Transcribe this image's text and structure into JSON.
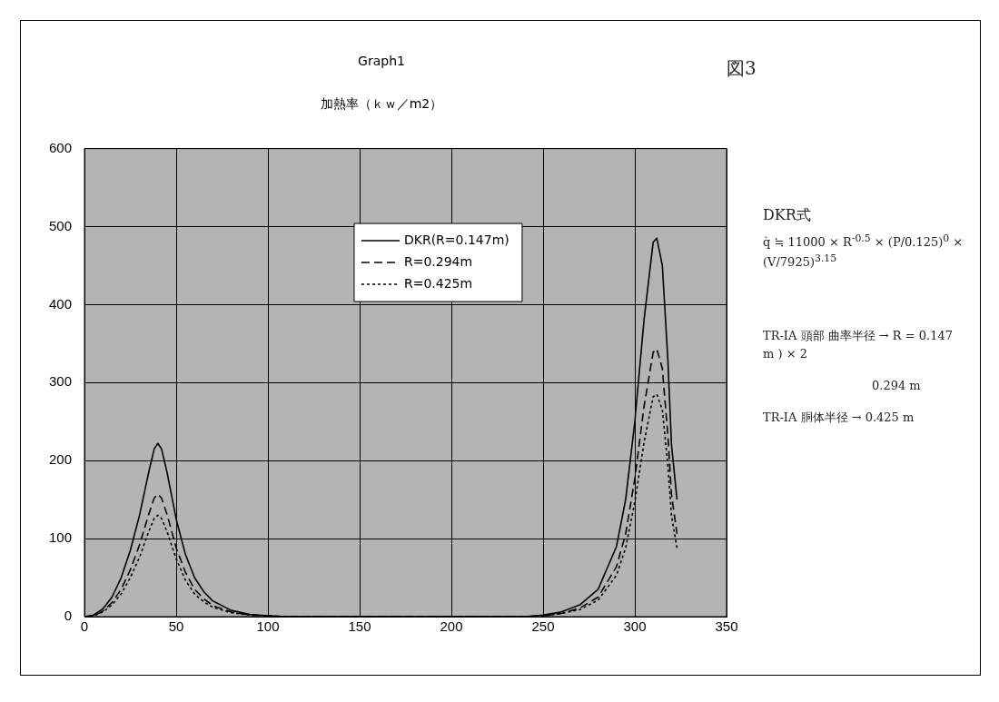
{
  "chart_data": {
    "type": "line",
    "title": "Graph1",
    "subtitle": "加熱率（ｋｗ／m2）",
    "xlim": [
      0,
      350
    ],
    "xticks": [
      0,
      50,
      100,
      150,
      200,
      250,
      300,
      350
    ],
    "ylim": [
      0,
      600
    ],
    "yticks": [
      0,
      100,
      200,
      300,
      400,
      500,
      600
    ],
    "grid": true,
    "legend": "top",
    "marker": "none",
    "series": [
      {
        "name": "DKR(R=0.147m)",
        "color": "#000000",
        "line_style": "solid",
        "x": [
          0,
          5,
          10,
          15,
          20,
          25,
          30,
          35,
          38,
          40,
          42,
          45,
          50,
          55,
          60,
          65,
          70,
          80,
          90,
          100,
          110,
          240,
          250,
          260,
          270,
          280,
          290,
          295,
          300,
          305,
          310,
          312,
          315,
          318,
          320,
          323
        ],
        "values": [
          0,
          2,
          10,
          25,
          50,
          85,
          130,
          185,
          215,
          222,
          215,
          185,
          125,
          80,
          50,
          32,
          20,
          8,
          3,
          1,
          0,
          0,
          2,
          6,
          15,
          35,
          90,
          150,
          250,
          380,
          480,
          485,
          450,
          330,
          220,
          150
        ]
      },
      {
        "name": "R=0.294m",
        "color": "#000000",
        "line_style": "dashed",
        "x": [
          0,
          5,
          10,
          15,
          20,
          25,
          30,
          35,
          38,
          40,
          42,
          45,
          50,
          55,
          60,
          65,
          70,
          80,
          90,
          100,
          110,
          240,
          250,
          260,
          270,
          280,
          290,
          295,
          300,
          305,
          310,
          312,
          315,
          318,
          320,
          323
        ],
        "values": [
          0,
          1,
          7,
          18,
          35,
          60,
          92,
          131,
          152,
          157,
          152,
          131,
          88,
          57,
          35,
          23,
          14,
          6,
          2,
          1,
          0,
          0,
          1,
          4,
          11,
          25,
          64,
          106,
          177,
          269,
          339,
          343,
          318,
          233,
          156,
          106
        ]
      },
      {
        "name": "R=0.425m",
        "color": "#000000",
        "line_style": "dotted",
        "x": [
          0,
          5,
          10,
          15,
          20,
          25,
          30,
          35,
          38,
          40,
          42,
          45,
          50,
          55,
          60,
          65,
          70,
          80,
          90,
          100,
          110,
          240,
          250,
          260,
          270,
          280,
          290,
          295,
          300,
          305,
          310,
          312,
          315,
          318,
          320,
          323
        ],
        "values": [
          0,
          1,
          6,
          15,
          29,
          50,
          76,
          109,
          126,
          130,
          126,
          109,
          74,
          47,
          29,
          19,
          12,
          5,
          2,
          1,
          0,
          0,
          1,
          4,
          9,
          21,
          53,
          88,
          147,
          223,
          282,
          285,
          265,
          194,
          129,
          88
        ]
      }
    ],
    "annotations": [
      "図3",
      "DKR式",
      "q̇ ≒ 11000 × R$^{-0.5}$ × (P/0.125)$^{0}$ × (V/7925)$^{3.15}$",
      "TR-IA 頭部 曲率半径 → R = 0.147 m ) × 2",
      "0.294 m",
      "TR-IA 胴体半径 → 0.425 m"
    ]
  }
}
